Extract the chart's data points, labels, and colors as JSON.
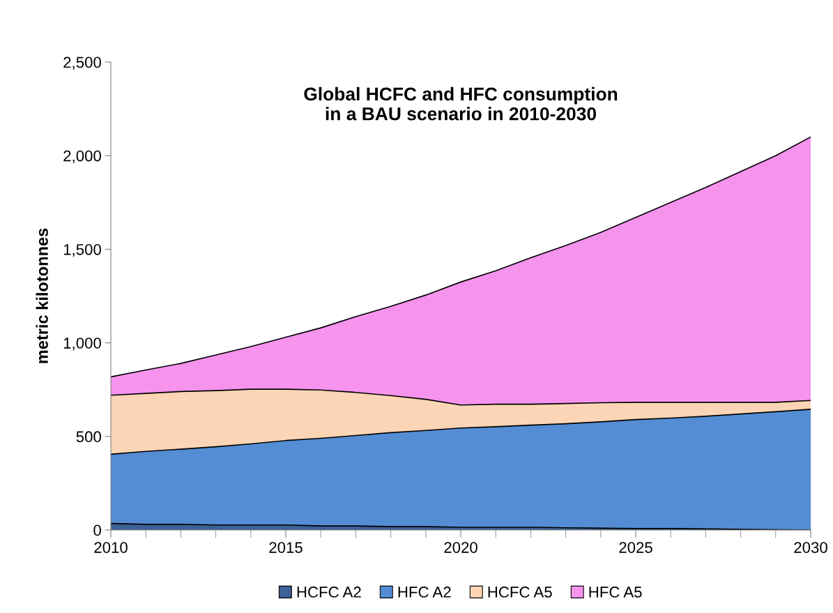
{
  "chart_data": {
    "type": "area",
    "stacked": true,
    "title": "Global HCFC and HFC consumption\nin a BAU scenario in 2010-2030",
    "ylabel": "metric kilotonnes",
    "x": [
      2010,
      2011,
      2012,
      2013,
      2014,
      2015,
      2016,
      2017,
      2018,
      2019,
      2020,
      2021,
      2022,
      2023,
      2024,
      2025,
      2026,
      2027,
      2028,
      2029,
      2030
    ],
    "series": [
      {
        "name": "HCFC A2",
        "color": "#3a6296",
        "values": [
          35,
          30,
          30,
          27,
          27,
          27,
          22,
          22,
          18,
          18,
          15,
          15,
          15,
          12,
          10,
          8,
          8,
          6,
          3,
          2,
          0
        ]
      },
      {
        "name": "HFC A2",
        "color": "#548dd4",
        "values": [
          370,
          390,
          402,
          418,
          433,
          451,
          468,
          483,
          502,
          514,
          530,
          537,
          545,
          556,
          568,
          582,
          590,
          602,
          617,
          630,
          645
        ]
      },
      {
        "name": "HCFC A5",
        "color": "#fbd5b5",
        "values": [
          315,
          310,
          308,
          300,
          292,
          274,
          258,
          230,
          198,
          166,
          123,
          120,
          112,
          108,
          102,
          92,
          84,
          74,
          62,
          50,
          47
        ]
      },
      {
        "name": "HFC A5",
        "color": "#f593ed",
        "values": [
          98,
          125,
          150,
          190,
          228,
          278,
          332,
          405,
          477,
          557,
          657,
          713,
          783,
          844,
          910,
          988,
          1068,
          1148,
          1233,
          1318,
          1408
        ]
      }
    ],
    "xlim": [
      2010,
      2030
    ],
    "xticks": [
      2010,
      2015,
      2020,
      2025,
      2030
    ],
    "ylim": [
      0,
      2500
    ],
    "yticks": [
      {
        "value": 0,
        "label": "0"
      },
      {
        "value": 500,
        "label": "500"
      },
      {
        "value": 1000,
        "label": "1,000"
      },
      {
        "value": 1500,
        "label": "1,500"
      },
      {
        "value": 2000,
        "label": "2,000"
      },
      {
        "value": 2500,
        "label": "2,500"
      }
    ],
    "grid": false,
    "legend": "bottom"
  }
}
